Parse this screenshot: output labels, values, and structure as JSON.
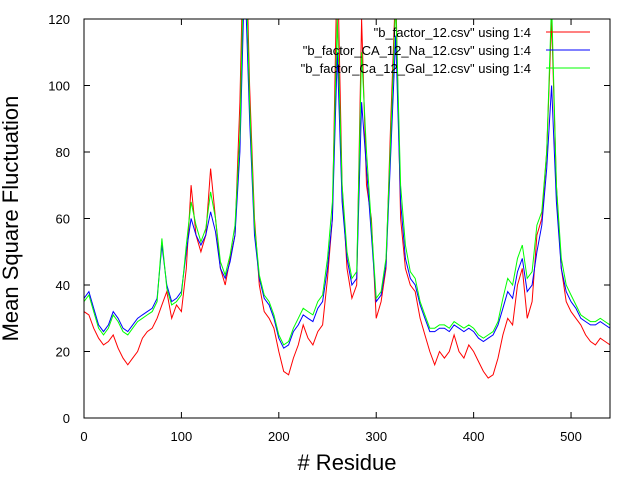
{
  "chart_data": {
    "type": "line",
    "title": "",
    "xlabel": "# Residue",
    "ylabel": "Mean Square Fluctuation",
    "xlim": [
      0,
      540
    ],
    "ylim": [
      0,
      120
    ],
    "xticks": [
      0,
      100,
      200,
      300,
      400,
      500
    ],
    "yticks": [
      0,
      20,
      40,
      60,
      80,
      100,
      120
    ],
    "grid": false,
    "legend_position": "top-right",
    "series": [
      {
        "name": "\"b_factor_12.csv\" using 1:4",
        "color": "#ff0000",
        "x": [
          0,
          5,
          10,
          15,
          20,
          25,
          30,
          35,
          40,
          45,
          50,
          55,
          60,
          65,
          70,
          75,
          80,
          85,
          90,
          95,
          100,
          105,
          110,
          115,
          120,
          125,
          130,
          135,
          140,
          145,
          150,
          155,
          160,
          165,
          170,
          175,
          180,
          185,
          190,
          195,
          200,
          205,
          210,
          215,
          220,
          225,
          230,
          235,
          240,
          245,
          250,
          255,
          260,
          265,
          270,
          275,
          280,
          285,
          290,
          295,
          300,
          305,
          310,
          315,
          320,
          325,
          330,
          335,
          340,
          345,
          350,
          355,
          360,
          365,
          370,
          375,
          380,
          385,
          390,
          395,
          400,
          405,
          410,
          415,
          420,
          425,
          430,
          435,
          440,
          445,
          450,
          455,
          460,
          465,
          470,
          475,
          480,
          485,
          490,
          495,
          500,
          505,
          510,
          515,
          520,
          525,
          530,
          535,
          540
        ],
        "y": [
          32,
          31,
          27,
          24,
          22,
          23,
          25,
          21,
          18,
          16,
          18,
          20,
          24,
          26,
          27,
          30,
          34,
          38,
          30,
          34,
          32,
          45,
          70,
          55,
          50,
          55,
          75,
          60,
          45,
          40,
          48,
          55,
          95,
          160,
          100,
          60,
          40,
          32,
          30,
          27,
          20,
          14,
          13,
          18,
          22,
          28,
          24,
          22,
          26,
          28,
          42,
          60,
          140,
          70,
          45,
          36,
          40,
          120,
          70,
          60,
          30,
          35,
          45,
          90,
          130,
          60,
          45,
          40,
          38,
          30,
          25,
          20,
          16,
          20,
          18,
          20,
          25,
          20,
          18,
          22,
          20,
          17,
          14,
          12,
          13,
          18,
          25,
          30,
          28,
          40,
          45,
          30,
          35,
          55,
          60,
          80,
          120,
          70,
          45,
          35,
          32,
          30,
          28,
          25,
          23,
          22,
          24,
          23,
          22
        ]
      },
      {
        "name": "\"b_factor_CA_12_Na_12.csv\" using 1:4",
        "color": "#0000ff",
        "x": [
          0,
          5,
          10,
          15,
          20,
          25,
          30,
          35,
          40,
          45,
          50,
          55,
          60,
          65,
          70,
          75,
          80,
          85,
          90,
          95,
          100,
          105,
          110,
          115,
          120,
          125,
          130,
          135,
          140,
          145,
          150,
          155,
          160,
          165,
          170,
          175,
          180,
          185,
          190,
          195,
          200,
          205,
          210,
          215,
          220,
          225,
          230,
          235,
          240,
          245,
          250,
          255,
          260,
          265,
          270,
          275,
          280,
          285,
          290,
          295,
          300,
          305,
          310,
          315,
          320,
          325,
          330,
          335,
          340,
          345,
          350,
          355,
          360,
          365,
          370,
          375,
          380,
          385,
          390,
          395,
          400,
          405,
          410,
          415,
          420,
          425,
          430,
          435,
          440,
          445,
          450,
          455,
          460,
          465,
          470,
          475,
          480,
          485,
          490,
          495,
          500,
          505,
          510,
          515,
          520,
          525,
          530,
          535,
          540
        ],
        "y": [
          36,
          38,
          33,
          28,
          26,
          28,
          32,
          30,
          27,
          26,
          28,
          30,
          31,
          32,
          33,
          36,
          52,
          40,
          35,
          36,
          38,
          50,
          60,
          55,
          52,
          55,
          62,
          56,
          45,
          42,
          47,
          55,
          80,
          135,
          90,
          55,
          42,
          36,
          34,
          30,
          24,
          21,
          22,
          26,
          28,
          31,
          30,
          29,
          33,
          35,
          45,
          60,
          110,
          65,
          48,
          40,
          42,
          95,
          75,
          55,
          35,
          37,
          46,
          80,
          115,
          65,
          48,
          42,
          40,
          34,
          30,
          26,
          26,
          27,
          27,
          26,
          28,
          27,
          26,
          27,
          26,
          24,
          23,
          24,
          25,
          28,
          33,
          38,
          36,
          44,
          48,
          38,
          40,
          50,
          58,
          75,
          100,
          65,
          45,
          38,
          35,
          33,
          30,
          29,
          28,
          28,
          29,
          28,
          27
        ]
      },
      {
        "name": "\"b_factor_Ca_12_Gal_12.csv\" using 1:4",
        "color": "#00ff00",
        "x": [
          0,
          5,
          10,
          15,
          20,
          25,
          30,
          35,
          40,
          45,
          50,
          55,
          60,
          65,
          70,
          75,
          80,
          85,
          90,
          95,
          100,
          105,
          110,
          115,
          120,
          125,
          130,
          135,
          140,
          145,
          150,
          155,
          160,
          165,
          170,
          175,
          180,
          185,
          190,
          195,
          200,
          205,
          210,
          215,
          220,
          225,
          230,
          235,
          240,
          245,
          250,
          255,
          260,
          265,
          270,
          275,
          280,
          285,
          290,
          295,
          300,
          305,
          310,
          315,
          320,
          325,
          330,
          335,
          340,
          345,
          350,
          355,
          360,
          365,
          370,
          375,
          380,
          385,
          390,
          395,
          400,
          405,
          410,
          415,
          420,
          425,
          430,
          435,
          440,
          445,
          450,
          455,
          460,
          465,
          470,
          475,
          480,
          485,
          490,
          495,
          500,
          505,
          510,
          515,
          520,
          525,
          530,
          535,
          540
        ],
        "y": [
          35,
          37,
          32,
          27,
          25,
          27,
          31,
          29,
          26,
          25,
          27,
          29,
          30,
          31,
          32,
          35,
          54,
          39,
          34,
          35,
          37,
          52,
          65,
          58,
          53,
          57,
          68,
          60,
          47,
          43,
          49,
          58,
          85,
          150,
          95,
          58,
          43,
          37,
          35,
          31,
          25,
          22,
          23,
          27,
          30,
          33,
          32,
          31,
          35,
          37,
          48,
          65,
          120,
          70,
          50,
          42,
          44,
          110,
          80,
          58,
          36,
          38,
          48,
          85,
          125,
          70,
          52,
          44,
          42,
          35,
          31,
          27,
          27,
          28,
          28,
          27,
          29,
          28,
          27,
          28,
          27,
          25,
          24,
          25,
          26,
          29,
          36,
          42,
          40,
          48,
          52,
          42,
          44,
          58,
          62,
          80,
          125,
          70,
          48,
          40,
          37,
          34,
          31,
          30,
          29,
          29,
          30,
          29,
          28
        ]
      }
    ]
  }
}
